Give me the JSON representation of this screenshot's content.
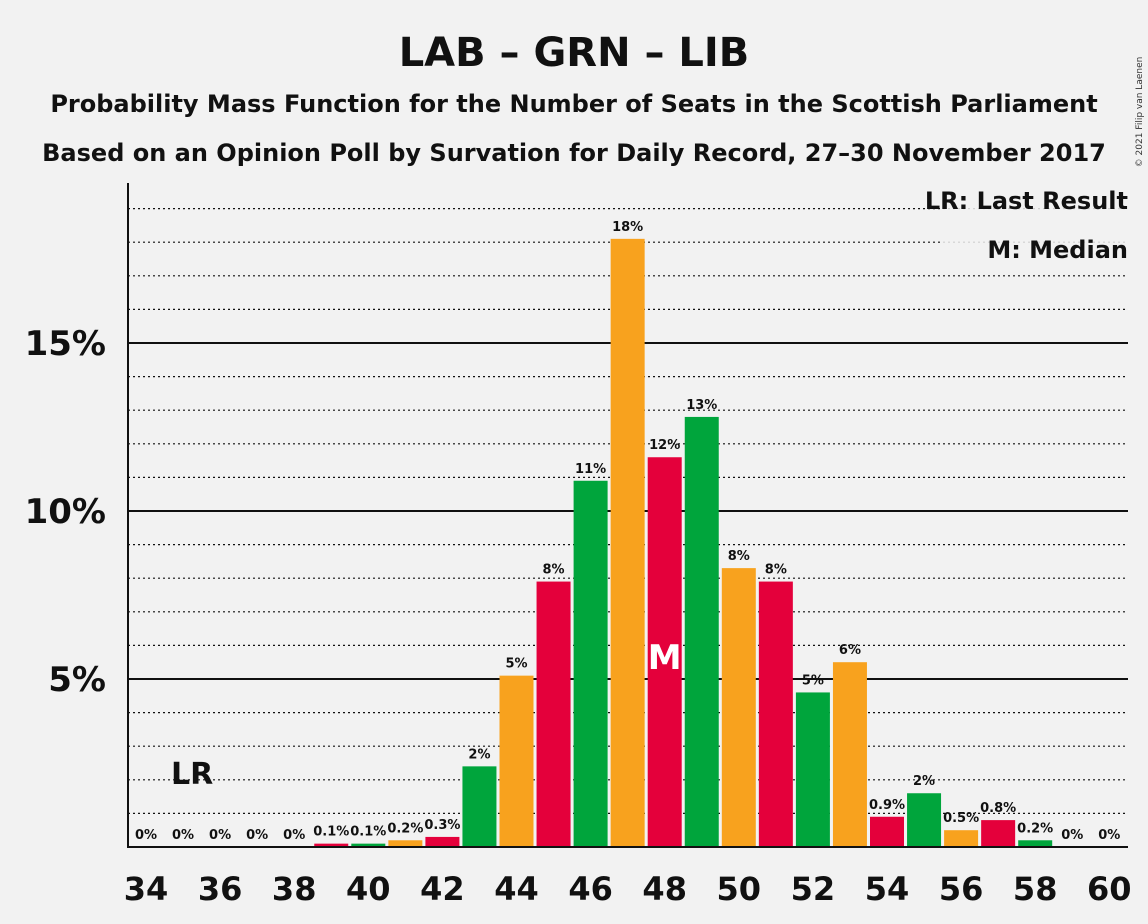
{
  "title": "LAB – GRN – LIB",
  "subtitle1": "Probability Mass Function for the Number of Seats in the Scottish Parliament",
  "subtitle2": "Based on an Opinion Poll by Survation for Daily Record, 27–30 November 2017",
  "copyright": "© 2021 Filip van Laenen",
  "legend": {
    "last_result": "LR: Last Result",
    "median": "M: Median"
  },
  "colors": {
    "green": "#00a53c",
    "orange": "#f8a21e",
    "red": "#e4003b"
  },
  "chart_data": {
    "type": "bar",
    "x": [
      34,
      35,
      36,
      37,
      38,
      39,
      40,
      41,
      42,
      43,
      44,
      45,
      46,
      47,
      48,
      49,
      50,
      51,
      52,
      53,
      54,
      55,
      56,
      57,
      58,
      59,
      60
    ],
    "values": [
      0,
      0,
      0,
      0,
      0,
      0.1,
      0.1,
      0.2,
      0.3,
      2.4,
      5.1,
      7.9,
      10.9,
      18.1,
      11.6,
      12.8,
      8.3,
      7.9,
      4.6,
      5.5,
      0.9,
      1.6,
      0.5,
      0.8,
      0.2,
      0,
      0
    ],
    "colors": [
      "green",
      "orange",
      "red",
      "green",
      "orange",
      "red",
      "green",
      "orange",
      "red",
      "green",
      "orange",
      "red",
      "green",
      "orange",
      "red",
      "green",
      "orange",
      "red",
      "green",
      "orange",
      "red",
      "green",
      "orange",
      "red",
      "green",
      "orange",
      "red"
    ],
    "data_labels": [
      "0%",
      "0%",
      "0%",
      "0%",
      "0%",
      "0.1%",
      "0.1%",
      "0.2%",
      "0.3%",
      "2%",
      "5%",
      "8%",
      "11%",
      "18%",
      "12%",
      "13%",
      "8%",
      "8%",
      "5%",
      "6%",
      "0.9%",
      "2%",
      "0.5%",
      "0.8%",
      "0.2%",
      "0%",
      "0%"
    ],
    "x_ticks": [
      "34",
      "36",
      "38",
      "40",
      "42",
      "44",
      "46",
      "48",
      "50",
      "52",
      "54",
      "56",
      "58",
      "60"
    ],
    "y_ticks": [
      {
        "value": 5,
        "label": "5%"
      },
      {
        "value": 10,
        "label": "10%"
      },
      {
        "value": 15,
        "label": "15%"
      }
    ],
    "ylim": [
      0,
      19.7
    ],
    "grid": "dotted minor every 1%, solid major every 5%",
    "last_result": {
      "x": 35,
      "label": "LR"
    },
    "median": {
      "x": 48,
      "label": "M"
    },
    "legend_position": "top-right"
  }
}
